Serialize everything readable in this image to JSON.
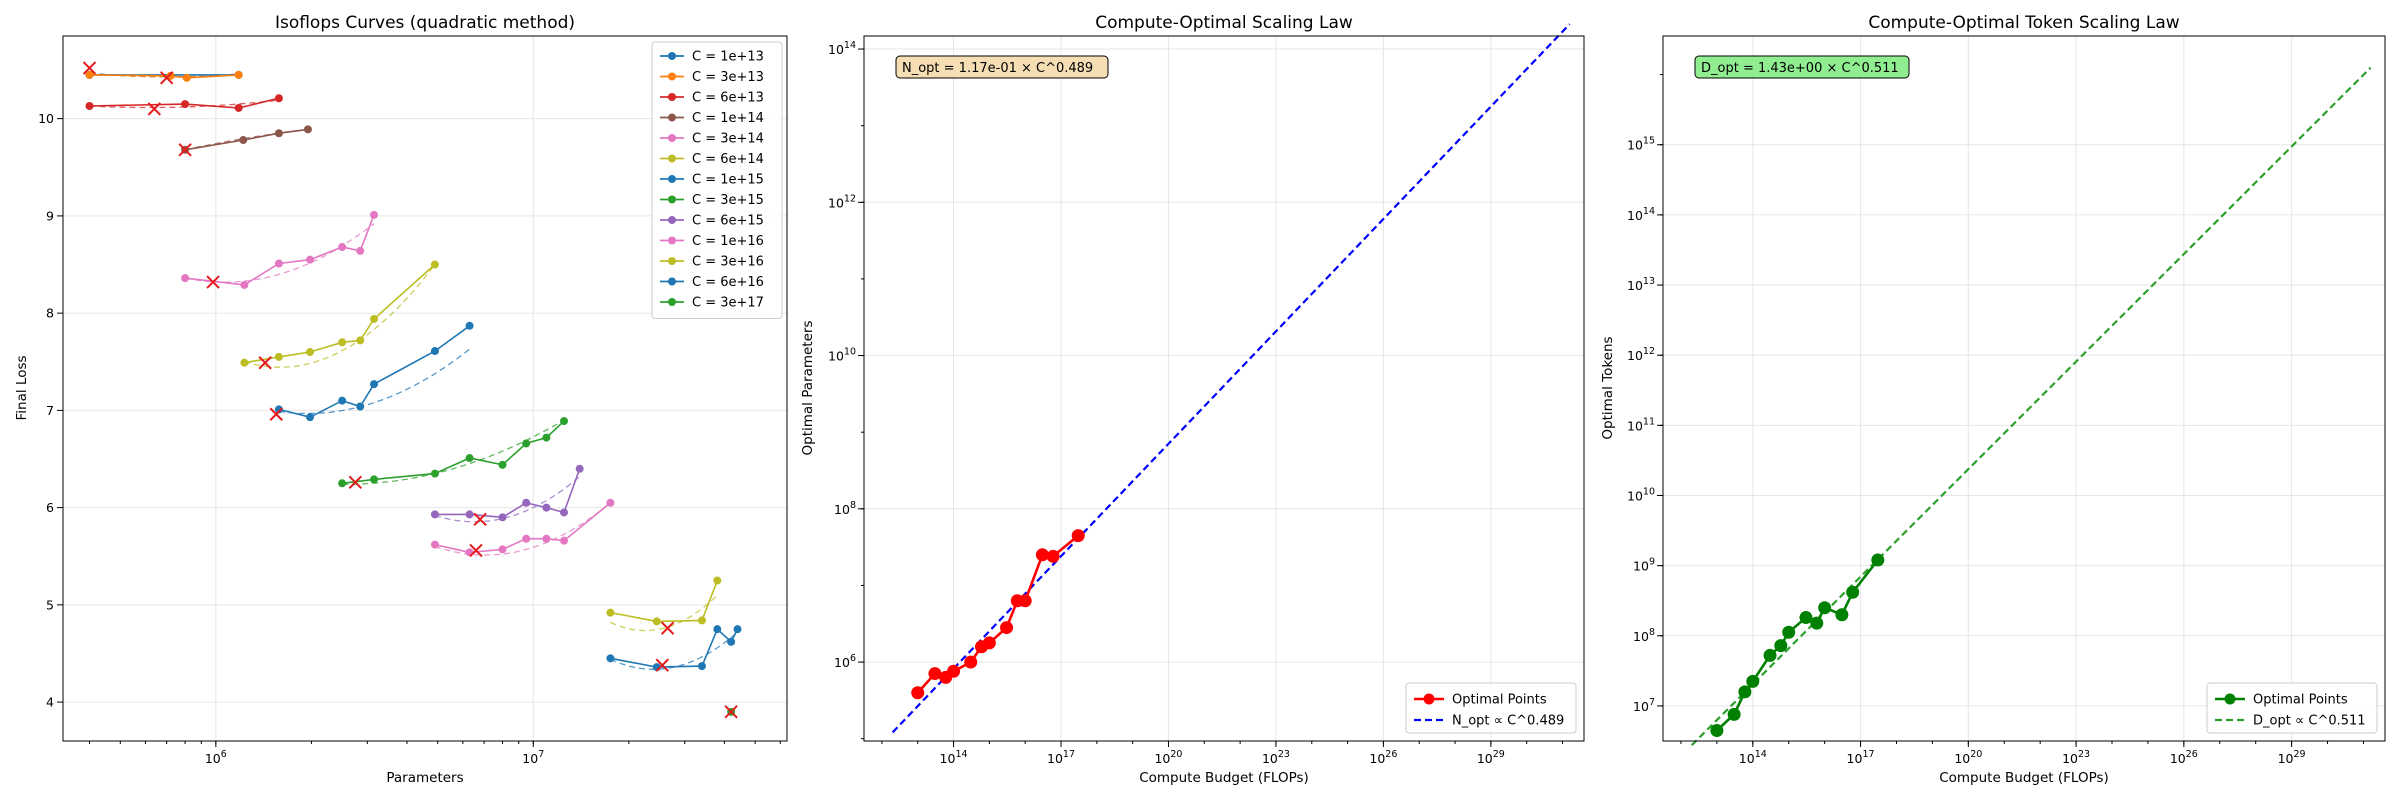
{
  "colors": {
    "series": [
      "#1f77b4",
      "#ff7f0e",
      "#d62728",
      "#8c564b",
      "#e377c2",
      "#bcbd22",
      "#1f77b4",
      "#2ca02c",
      "#9467bd",
      "#e377c2",
      "#bcbd22",
      "#1f77b4",
      "#2ca02c"
    ],
    "optimum_marker": "#e41a1c",
    "params_points": "#ff0000",
    "params_fit": "#0000ff",
    "tokens_points": "#008000",
    "tokens_fit": "#2ca02c",
    "params_box": "#f5deb3",
    "tokens_box": "#90ee90"
  },
  "chart_data": [
    {
      "type": "line",
      "title": "Isoflops Curves (quadratic method)",
      "xlabel": "Parameters",
      "ylabel": "Final Loss",
      "xscale": "log",
      "xlim": [
        330000,
        63000000
      ],
      "ylim": [
        3.6,
        10.85
      ],
      "xticks": [
        {
          "value": 1000000,
          "base": "10",
          "exp": "6"
        },
        {
          "value": 10000000,
          "base": "10",
          "exp": "7"
        }
      ],
      "yticks": [
        4,
        5,
        6,
        7,
        8,
        9,
        10
      ],
      "grid": true,
      "legend_position": "upper right",
      "series": [
        {
          "name": "C = 1e+13",
          "x": [
            400000,
            1180000
          ],
          "y": [
            10.45,
            10.45
          ],
          "fit": [
            10.47,
            10.43,
            10.46
          ],
          "opt": [
            400000,
            10.52
          ]
        },
        {
          "name": "C = 3e+13",
          "x": [
            400000,
            720000,
            810000,
            1180000
          ],
          "y": [
            10.45,
            10.44,
            10.42,
            10.45
          ],
          "fit": [
            10.46,
            10.43,
            10.45
          ],
          "opt": [
            700000,
            10.42
          ]
        },
        {
          "name": "C = 6e+13",
          "x": [
            400000,
            800000,
            1180000,
            1580000
          ],
          "y": [
            10.13,
            10.15,
            10.11,
            10.21
          ],
          "fit": [
            10.13,
            10.12,
            10.19
          ],
          "opt": [
            640000,
            10.1
          ]
        },
        {
          "name": "C = 1e+14",
          "x": [
            800000,
            1220000,
            1580000,
            1950000
          ],
          "y": [
            9.68,
            9.78,
            9.85,
            9.89
          ],
          "fit": [
            9.68,
            9.8,
            9.89
          ],
          "opt": [
            800000,
            9.68
          ]
        },
        {
          "name": "C = 3e+14",
          "x": [
            800000,
            1230000,
            1580000,
            1980000,
            2500000,
            2850000,
            3150000
          ],
          "y": [
            8.36,
            8.29,
            8.51,
            8.55,
            8.68,
            8.64,
            9.01
          ],
          "fit": [
            8.36,
            8.4,
            8.92
          ],
          "opt": [
            980000,
            8.32
          ]
        },
        {
          "name": "C = 6e+14",
          "x": [
            1230000,
            1580000,
            1980000,
            2500000,
            2850000,
            3150000,
            4900000
          ],
          "y": [
            7.49,
            7.55,
            7.6,
            7.7,
            7.72,
            7.94,
            8.5
          ],
          "fit": [
            7.5,
            7.6,
            8.5
          ],
          "opt": [
            1430000,
            7.49
          ]
        },
        {
          "name": "C = 1e+15",
          "x": [
            1580000,
            1980000,
            2500000,
            2850000,
            3150000,
            4900000,
            6300000
          ],
          "y": [
            7.01,
            6.93,
            7.1,
            7.04,
            7.27,
            7.61,
            7.87
          ],
          "fit": [
            6.99,
            7.08,
            7.63
          ],
          "opt": [
            1550000,
            6.96
          ]
        },
        {
          "name": "C = 3e+15",
          "x": [
            2500000,
            3150000,
            4900000,
            6300000,
            8000000,
            9500000,
            11000000,
            12500000
          ],
          "y": [
            6.25,
            6.29,
            6.35,
            6.51,
            6.44,
            6.66,
            6.72,
            6.89
          ],
          "fit": [
            6.24,
            6.4,
            6.9
          ],
          "opt": [
            2750000,
            6.26
          ]
        },
        {
          "name": "C = 6e+15",
          "x": [
            4900000,
            6300000,
            8000000,
            9500000,
            11000000,
            12500000,
            14000000
          ],
          "y": [
            5.93,
            5.93,
            5.9,
            6.05,
            6.0,
            5.95,
            6.4
          ],
          "fit": [
            5.92,
            5.9,
            6.32
          ],
          "opt": [
            6800000,
            5.88
          ]
        },
        {
          "name": "C = 1e+16",
          "x": [
            4900000,
            6300000,
            8000000,
            9500000,
            11000000,
            12500000,
            17500000
          ],
          "y": [
            5.62,
            5.54,
            5.57,
            5.68,
            5.68,
            5.66,
            6.05
          ],
          "fit": [
            5.6,
            5.56,
            6.05
          ],
          "opt": [
            6600000,
            5.56
          ]
        },
        {
          "name": "C = 3e+16",
          "x": [
            17500000,
            24500000,
            34000000,
            38000000
          ],
          "y": [
            4.92,
            4.83,
            4.84,
            5.25
          ],
          "fit": [
            4.82,
            4.76,
            5.1
          ],
          "opt": [
            26500000,
            4.76
          ]
        },
        {
          "name": "C = 6e+16",
          "x": [
            17500000,
            24500000,
            34000000,
            38000000,
            42000000,
            44000000
          ],
          "y": [
            4.45,
            4.36,
            4.37,
            4.75,
            4.62,
            4.75
          ],
          "fit": [
            4.44,
            4.36,
            4.72
          ],
          "opt": [
            25500000,
            4.38
          ]
        },
        {
          "name": "C = 3e+17",
          "x": [
            42000000
          ],
          "y": [
            3.9
          ],
          "fit": [
            3.9,
            3.9,
            3.9
          ],
          "opt": [
            42000000,
            3.9
          ]
        }
      ]
    },
    {
      "type": "line",
      "title": "Compute-Optimal Scaling Law",
      "xlabel": "Compute Budget (FLOPs)",
      "ylabel": "Optimal Parameters",
      "xscale": "log",
      "yscale": "log",
      "xlim_exp": [
        11.5,
        31.6
      ],
      "ylim_exp": [
        4.97,
        14.17
      ],
      "xticks": [
        {
          "base": "10",
          "exp": "14"
        },
        {
          "base": "10",
          "exp": "17"
        },
        {
          "base": "10",
          "exp": "20"
        },
        {
          "base": "10",
          "exp": "23"
        },
        {
          "base": "10",
          "exp": "26"
        },
        {
          "base": "10",
          "exp": "29"
        }
      ],
      "yticks": [
        {
          "base": "10",
          "exp": "6"
        },
        {
          "base": "10",
          "exp": "8"
        },
        {
          "base": "10",
          "exp": "10"
        },
        {
          "base": "10",
          "exp": "12"
        },
        {
          "base": "10",
          "exp": "14"
        }
      ],
      "grid": true,
      "legend_position": "lower right",
      "points": {
        "name": "Optimal Points",
        "log_x": [
          13,
          13.48,
          13.78,
          14,
          14.48,
          14.78,
          15,
          15.48,
          15.78,
          16,
          16.48,
          16.78,
          17.48
        ],
        "log_y": [
          5.6,
          5.85,
          5.8,
          5.88,
          6.0,
          6.2,
          6.25,
          6.45,
          6.8,
          6.8,
          7.4,
          7.38,
          7.65
        ]
      },
      "fit": {
        "name": "N_opt ∝ C^0.489",
        "coef": 0.117,
        "exponent": 0.489,
        "log_x_range": [
          12.3,
          31.2
        ]
      },
      "annotation": "N_opt = 1.17e-01 × C^0.489"
    },
    {
      "type": "line",
      "title": "Compute-Optimal Token Scaling Law",
      "xlabel": "Compute Budget (FLOPs)",
      "ylabel": "Optimal Tokens",
      "xscale": "log",
      "yscale": "log",
      "xlim_exp": [
        11.5,
        31.6
      ],
      "ylim_exp": [
        6.5,
        16.55
      ],
      "xticks": [
        {
          "base": "10",
          "exp": "14"
        },
        {
          "base": "10",
          "exp": "17"
        },
        {
          "base": "10",
          "exp": "20"
        },
        {
          "base": "10",
          "exp": "23"
        },
        {
          "base": "10",
          "exp": "26"
        },
        {
          "base": "10",
          "exp": "29"
        }
      ],
      "yticks": [
        {
          "base": "10",
          "exp": "7"
        },
        {
          "base": "10",
          "exp": "8"
        },
        {
          "base": "10",
          "exp": "9"
        },
        {
          "base": "10",
          "exp": "10"
        },
        {
          "base": "10",
          "exp": "11"
        },
        {
          "base": "10",
          "exp": "12"
        },
        {
          "base": "10",
          "exp": "13"
        },
        {
          "base": "10",
          "exp": "14"
        },
        {
          "base": "10",
          "exp": "15"
        }
      ],
      "grid": true,
      "legend_position": "lower right",
      "points": {
        "name": "Optimal Points",
        "log_x": [
          13,
          13.48,
          13.78,
          14,
          14.48,
          14.78,
          15,
          15.48,
          15.78,
          16,
          16.48,
          16.78,
          17.48
        ],
        "log_y": [
          6.65,
          6.88,
          7.2,
          7.35,
          7.72,
          7.86,
          8.05,
          8.26,
          8.18,
          8.4,
          8.3,
          8.62,
          9.08
        ]
      },
      "fit": {
        "name": "D_opt ∝ C^0.511",
        "coef": 1.43,
        "exponent": 0.511,
        "log_x_range": [
          12.3,
          31.2
        ]
      },
      "annotation": "D_opt = 1.43e+00 × C^0.511"
    }
  ]
}
